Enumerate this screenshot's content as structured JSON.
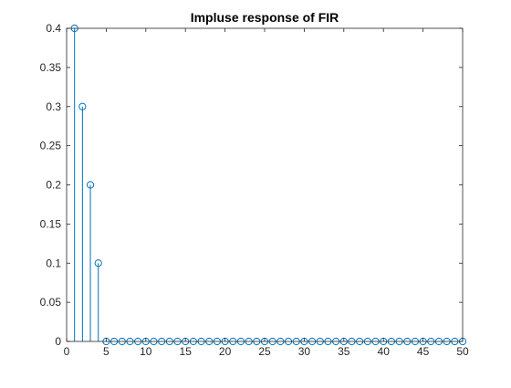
{
  "chart_data": {
    "type": "stem",
    "title": "Impluse response of FIR",
    "xlabel": "",
    "ylabel": "",
    "xlim": [
      0,
      50
    ],
    "ylim": [
      0,
      0.4
    ],
    "x_ticks": [
      0,
      5,
      10,
      15,
      20,
      25,
      30,
      35,
      40,
      45,
      50
    ],
    "x_tick_labels": [
      "0",
      "5",
      "10",
      "15",
      "20",
      "25",
      "30",
      "35",
      "40",
      "45",
      "50"
    ],
    "y_ticks": [
      0,
      0.05,
      0.1,
      0.15,
      0.2,
      0.25,
      0.3,
      0.35,
      0.4
    ],
    "y_tick_labels": [
      "0",
      "0.05",
      "0.1",
      "0.15",
      "0.2",
      "0.25",
      "0.3",
      "0.35",
      "0.4"
    ],
    "grid": false,
    "legend": "none",
    "color": "#0072BD",
    "x": [
      0,
      1,
      2,
      3,
      4,
      5,
      6,
      7,
      8,
      9,
      10,
      11,
      12,
      13,
      14,
      15,
      16,
      17,
      18,
      19,
      20,
      21,
      22,
      23,
      24,
      25,
      26,
      27,
      28,
      29,
      30,
      31,
      32,
      33,
      34,
      35,
      36,
      37,
      38,
      39,
      40,
      41,
      42,
      43,
      44,
      45,
      46,
      47,
      48,
      49,
      50
    ],
    "y": [
      0,
      0.4,
      0.3,
      0.2,
      0.1,
      0,
      0,
      0,
      0,
      0,
      0,
      0,
      0,
      0,
      0,
      0,
      0,
      0,
      0,
      0,
      0,
      0,
      0,
      0,
      0,
      0,
      0,
      0,
      0,
      0,
      0,
      0,
      0,
      0,
      0,
      0,
      0,
      0,
      0,
      0,
      0,
      0,
      0,
      0,
      0,
      0,
      0,
      0,
      0,
      0,
      0
    ],
    "markers": [
      false,
      true,
      true,
      true,
      true,
      true,
      true,
      true,
      true,
      true,
      true,
      true,
      true,
      true,
      true,
      true,
      true,
      true,
      true,
      true,
      true,
      true,
      true,
      true,
      true,
      true,
      true,
      true,
      true,
      true,
      true,
      true,
      true,
      true,
      true,
      true,
      true,
      true,
      true,
      true,
      true,
      true,
      true,
      true,
      true,
      true,
      true,
      true,
      true,
      true,
      true
    ]
  }
}
